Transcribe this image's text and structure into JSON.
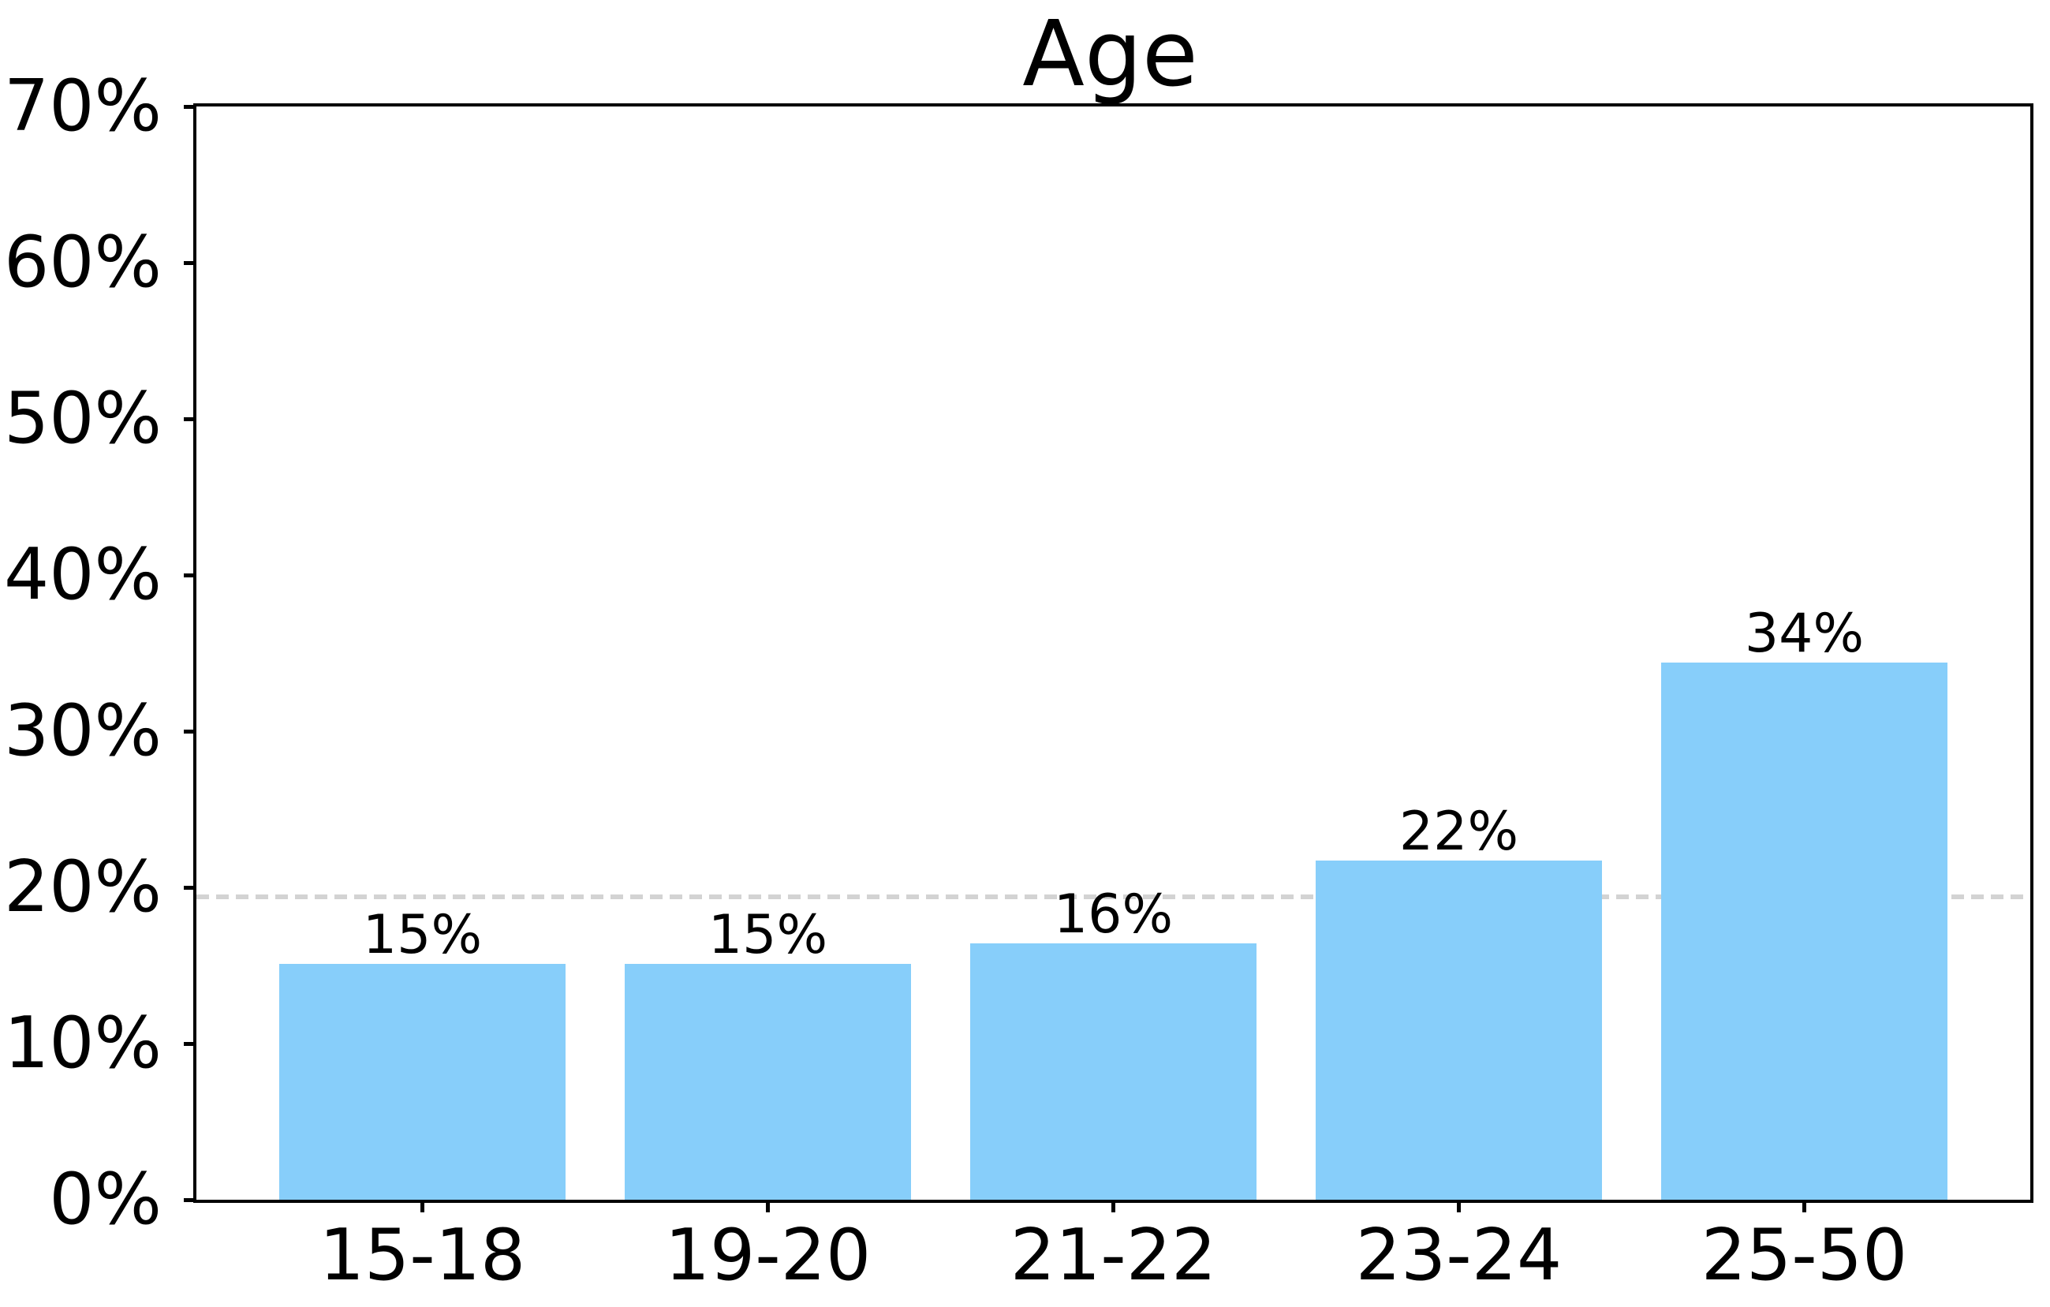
{
  "figure": {
    "background": "#ffffff"
  },
  "chart_data": {
    "type": "bar",
    "title": "Age",
    "categories": [
      "15-18",
      "19-20",
      "21-22",
      "23-24",
      "25-50"
    ],
    "values": [
      15,
      15,
      16,
      22,
      34
    ],
    "bar_labels": [
      "15%",
      "15%",
      "16%",
      "22%",
      "34%"
    ],
    "values_precise": [
      15.1,
      15.1,
      16.4,
      21.7,
      34.4
    ],
    "xlabel": "",
    "ylabel": "",
    "ylim": [
      0,
      70
    ],
    "yticks": [
      {
        "value": 0,
        "label": "0%"
      },
      {
        "value": 10,
        "label": "10%"
      },
      {
        "value": 20,
        "label": "20%"
      },
      {
        "value": 30,
        "label": "30%"
      },
      {
        "value": 40,
        "label": "40%"
      },
      {
        "value": 50,
        "label": "50%"
      },
      {
        "value": 60,
        "label": "60%"
      },
      {
        "value": 70,
        "label": "70%"
      }
    ],
    "grid": false,
    "legend_position": "none",
    "reference_line": {
      "value": 19.4,
      "style": "dashed",
      "color": "#d3d3d3"
    },
    "colors": {
      "bar": "#87CEFA",
      "text": "#000000",
      "spine": "#000000",
      "background": "#ffffff"
    }
  }
}
